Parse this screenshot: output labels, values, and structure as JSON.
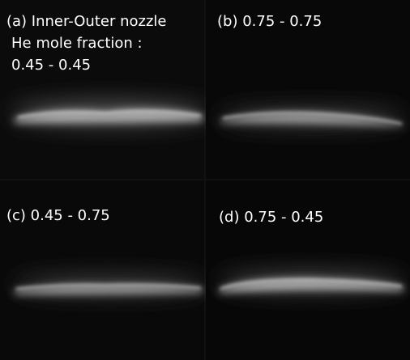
{
  "panels": [
    {
      "lines": [
        "(a) Inner-Outer nozzle",
        "He mole fraction :",
        "0.45 - 0.45"
      ]
    },
    {
      "lines": [
        "(b) 0.75 - 0.75"
      ]
    },
    {
      "lines": [
        "(c) 0.45 - 0.75"
      ]
    },
    {
      "lines": [
        "(d) 0.75 - 0.45"
      ]
    }
  ]
}
